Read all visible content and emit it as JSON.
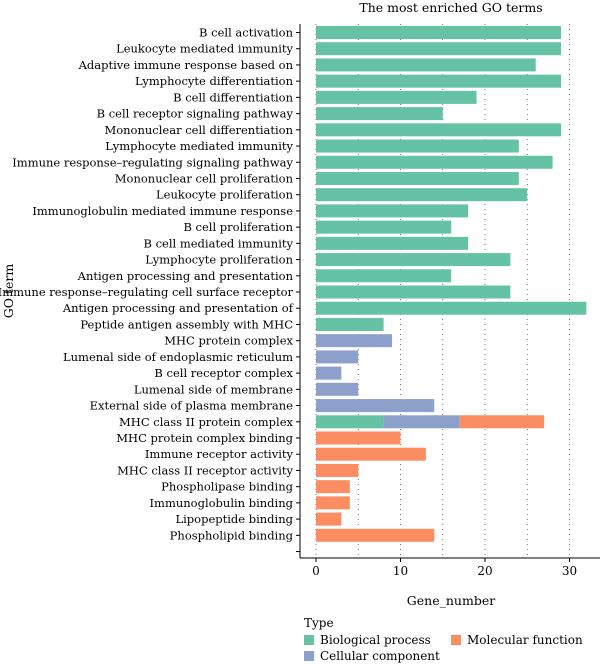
{
  "chart_data": {
    "type": "bar",
    "orientation": "horizontal",
    "title": "The most enriched GO terms",
    "xlabel": "Gene_number",
    "ylabel": "GO term",
    "xlim": [
      0,
      33
    ],
    "xticks": [
      0,
      10,
      20,
      30
    ],
    "grid": "dotted vertical",
    "legend": {
      "title": "Type",
      "placement": "bottom",
      "entries": [
        {
          "name": "Biological process",
          "color": "#66c2a5"
        },
        {
          "name": "Molecular function",
          "color": "#fc8d62"
        },
        {
          "name": "Cellular component",
          "color": "#8da0cb"
        }
      ]
    },
    "categories": [
      "B cell activation",
      "Leukocyte mediated immunity",
      "Adaptive immune response based on",
      "Lymphocyte differentiation",
      "B cell differentiation",
      "B cell receptor signaling pathway",
      "Mononuclear cell differentiation",
      "Lymphocyte mediated immunity",
      "Immune response–regulating signaling pathway",
      "Mononuclear cell proliferation",
      "Leukocyte proliferation",
      "Immunoglobulin mediated immune response",
      "B cell proliferation",
      "B cell mediated immunity",
      "Lymphocyte proliferation",
      "Antigen processing and presentation",
      "Immune response–regulating cell surface receptor",
      "Antigen processing and presentation of",
      "Peptide antigen assembly with MHC",
      "MHC protein complex",
      "Lumenal side of endoplasmic reticulum",
      "B cell receptor complex",
      "Lumenal side of membrane",
      "External side of plasma membrane",
      "MHC class II protein complex",
      "MHC protein complex binding",
      "Immune receptor activity",
      "MHC class II receptor activity",
      "Phospholipase binding",
      "Immunoglobulin binding",
      "Lipopeptide binding",
      "Phospholipid binding"
    ],
    "series": [
      {
        "name": "Biological process",
        "color": "#66c2a5",
        "values": [
          29,
          29,
          26,
          29,
          19,
          15,
          29,
          24,
          28,
          24,
          25,
          18,
          16,
          18,
          23,
          16,
          23,
          32,
          8,
          0,
          0,
          0,
          0,
          0,
          8,
          0,
          0,
          0,
          0,
          0,
          0,
          0
        ]
      },
      {
        "name": "Cellular component",
        "color": "#8da0cb",
        "values": [
          0,
          0,
          0,
          0,
          0,
          0,
          0,
          0,
          0,
          0,
          0,
          0,
          0,
          0,
          0,
          0,
          0,
          0,
          0,
          9,
          5,
          3,
          5,
          14,
          9,
          0,
          0,
          0,
          0,
          0,
          0,
          0
        ]
      },
      {
        "name": "Molecular function",
        "color": "#fc8d62",
        "values": [
          0,
          0,
          0,
          0,
          0,
          0,
          0,
          0,
          0,
          0,
          0,
          0,
          0,
          0,
          0,
          0,
          0,
          0,
          0,
          0,
          0,
          0,
          0,
          0,
          10,
          10,
          13,
          5,
          4,
          4,
          3,
          14
        ]
      }
    ]
  }
}
